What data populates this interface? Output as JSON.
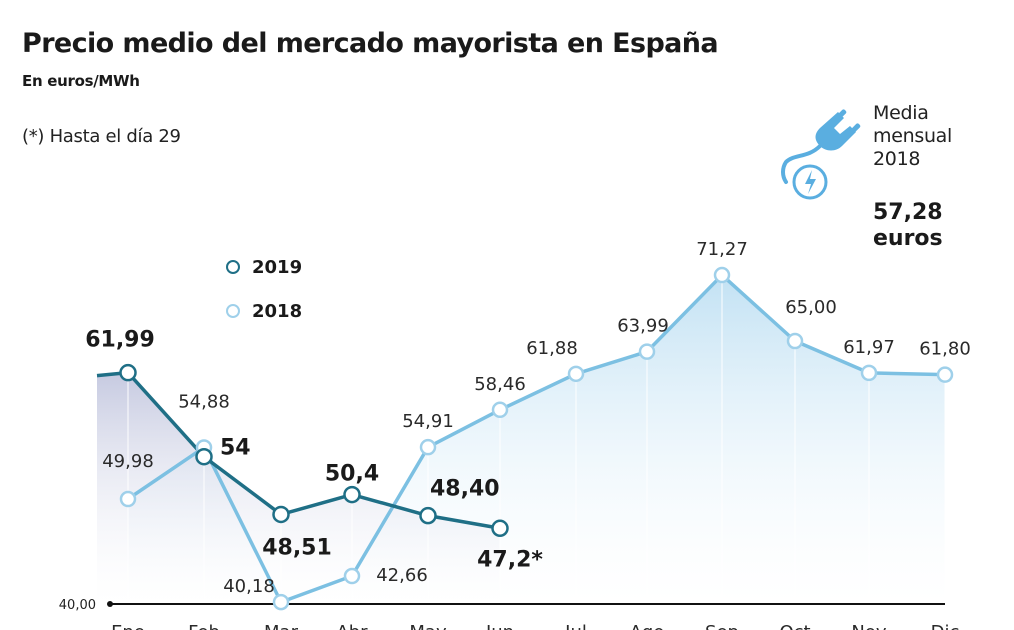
{
  "header": {
    "title": "Precio medio del mercado mayorista en España",
    "subtitle": "En euros/MWh",
    "note": "(*) Hasta el día 29"
  },
  "average_box": {
    "icon": "plug-bolt-icon",
    "label_lines": [
      "Media",
      "mensual",
      "2018"
    ],
    "value_lines": [
      "57,28",
      "euros"
    ]
  },
  "colors": {
    "series_2019": "#1f6f86",
    "series_2018": "#7cc0e2",
    "fill_2019": "#c9cde3",
    "fill_2018": "#d6ecf8",
    "axis": "#111111"
  },
  "chart_data": {
    "type": "line",
    "title": "Precio medio del mercado mayorista en España",
    "subtitle": "En euros/MWh",
    "xlabel": "",
    "ylabel": "euros/MWh",
    "categories": [
      "Ene",
      "Feb",
      "Mar",
      "Abr",
      "May",
      "Jun",
      "Jul",
      "Ago",
      "Sep",
      "Oct",
      "Nov",
      "Dic"
    ],
    "ylim": [
      40,
      72
    ],
    "baseline_label": "40,00",
    "grid": false,
    "legend_position": "top-left",
    "series": [
      {
        "name": "2019",
        "values": [
          61.99,
          54,
          48.51,
          50.4,
          48.4,
          47.2
        ],
        "labels": [
          "61,99",
          "54",
          "48,51",
          "50,4",
          "48,40",
          "47,2*"
        ]
      },
      {
        "name": "2018",
        "values": [
          49.98,
          54.88,
          40.18,
          42.66,
          54.91,
          58.46,
          61.88,
          63.99,
          71.27,
          65.0,
          61.97,
          61.8
        ],
        "labels": [
          "49,98",
          "54,88",
          "40,18",
          "42,66",
          "54,91",
          "58,46",
          "61,88",
          "63,99",
          "71,27",
          "65,00",
          "61,97",
          "61,80"
        ]
      }
    ]
  }
}
